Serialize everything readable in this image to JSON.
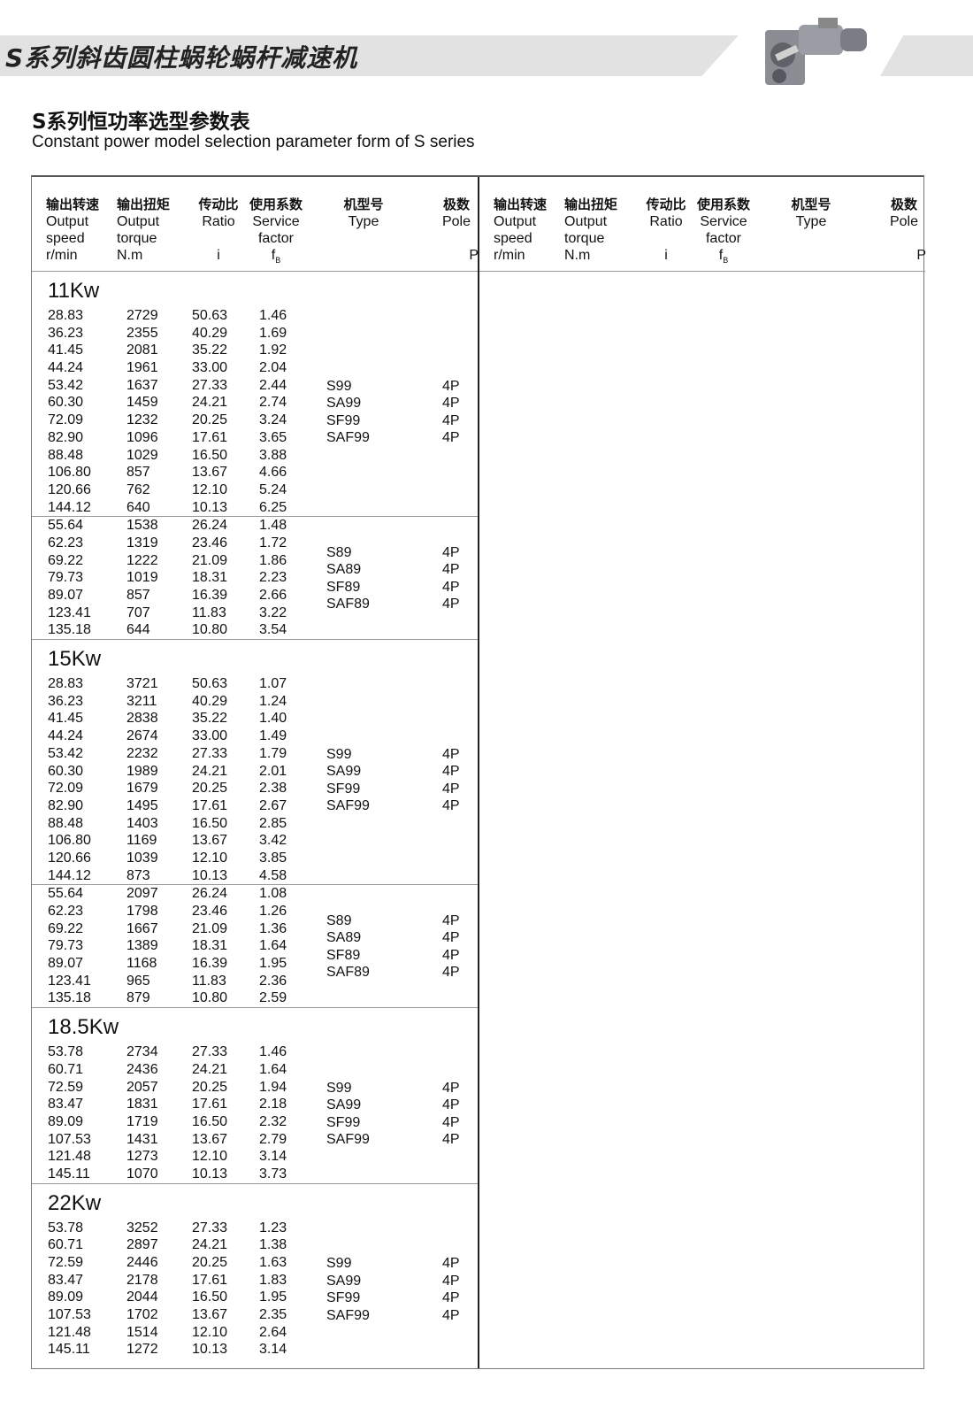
{
  "banner": {
    "title": "S系列斜齿圆柱蜗轮蜗杆减速机",
    "image_icon": "gear-reducer-product-image"
  },
  "subtitle_cn": "S系列恒功率选型参数表",
  "subtitle_en": "Constant power model selection parameter form of  S series",
  "headers": [
    {
      "cn": "输出转速",
      "en": [
        "Output",
        "speed",
        "r/min"
      ]
    },
    {
      "cn": "输出扭矩",
      "en": [
        "Output",
        "torque",
        "N.m"
      ]
    },
    {
      "cn": "传动比",
      "en": [
        "Ratio",
        "",
        "i"
      ]
    },
    {
      "cn": "使用系数",
      "en": [
        "Service",
        "factor",
        "fB"
      ]
    },
    {
      "cn": "机型号",
      "en": [
        "Type",
        "",
        ""
      ]
    },
    {
      "cn": "极数",
      "en": [
        "Pole",
        "",
        "P"
      ]
    }
  ],
  "sections": [
    {
      "title": "11Kw",
      "groups": [
        {
          "rows": [
            [
              "28.83",
              "2729",
              "50.63",
              "1.46"
            ],
            [
              "36.23",
              "2355",
              "40.29",
              "1.69"
            ],
            [
              "41.45",
              "2081",
              "35.22",
              "1.92"
            ],
            [
              "44.24",
              "1961",
              "33.00",
              "2.04"
            ],
            [
              "53.42",
              "1637",
              "27.33",
              "2.44"
            ],
            [
              "60.30",
              "1459",
              "24.21",
              "2.74"
            ],
            [
              "72.09",
              "1232",
              "20.25",
              "3.24"
            ],
            [
              "82.90",
              "1096",
              "17.61",
              "3.65"
            ],
            [
              "88.48",
              "1029",
              "16.50",
              "3.88"
            ],
            [
              "106.80",
              "857",
              "13.67",
              "4.66"
            ],
            [
              "120.66",
              "762",
              "12.10",
              "5.24"
            ],
            [
              "144.12",
              "640",
              "10.13",
              "6.25"
            ]
          ],
          "types": [
            "S99",
            "SA99",
            "SF99",
            "SAF99"
          ],
          "poles": [
            "4P",
            "4P",
            "4P",
            "4P"
          ],
          "type_row": 4
        },
        {
          "rows": [
            [
              "55.64",
              "1538",
              "26.24",
              "1.48"
            ],
            [
              "62.23",
              "1319",
              "23.46",
              "1.72"
            ],
            [
              "69.22",
              "1222",
              "21.09",
              "1.86"
            ],
            [
              "79.73",
              "1019",
              "18.31",
              "2.23"
            ],
            [
              "89.07",
              "857",
              "16.39",
              "2.66"
            ],
            [
              "123.41",
              "707",
              "11.83",
              "3.22"
            ],
            [
              "135.18",
              "644",
              "10.80",
              "3.54"
            ]
          ],
          "types": [
            "S89",
            "SA89",
            "SF89",
            "SAF89"
          ],
          "poles": [
            "4P",
            "4P",
            "4P",
            "4P"
          ],
          "type_row": 1.5
        }
      ]
    },
    {
      "title": "15Kw",
      "groups": [
        {
          "rows": [
            [
              "28.83",
              "3721",
              "50.63",
              "1.07"
            ],
            [
              "36.23",
              "3211",
              "40.29",
              "1.24"
            ],
            [
              "41.45",
              "2838",
              "35.22",
              "1.40"
            ],
            [
              "44.24",
              "2674",
              "33.00",
              "1.49"
            ],
            [
              "53.42",
              "2232",
              "27.33",
              "1.79"
            ],
            [
              "60.30",
              "1989",
              "24.21",
              "2.01"
            ],
            [
              "72.09",
              "1679",
              "20.25",
              "2.38"
            ],
            [
              "82.90",
              "1495",
              "17.61",
              "2.67"
            ],
            [
              "88.48",
              "1403",
              "16.50",
              "2.85"
            ],
            [
              "106.80",
              "1169",
              "13.67",
              "3.42"
            ],
            [
              "120.66",
              "1039",
              "12.10",
              "3.85"
            ],
            [
              "144.12",
              "873",
              "10.13",
              "4.58"
            ]
          ],
          "types": [
            "S99",
            "SA99",
            "SF99",
            "SAF99"
          ],
          "poles": [
            "4P",
            "4P",
            "4P",
            "4P"
          ],
          "type_row": 4
        },
        {
          "rows": [
            [
              "55.64",
              "2097",
              "26.24",
              "1.08"
            ],
            [
              "62.23",
              "1798",
              "23.46",
              "1.26"
            ],
            [
              "69.22",
              "1667",
              "21.09",
              "1.36"
            ],
            [
              "79.73",
              "1389",
              "18.31",
              "1.64"
            ],
            [
              "89.07",
              "1168",
              "16.39",
              "1.95"
            ],
            [
              "123.41",
              "965",
              "11.83",
              "2.36"
            ],
            [
              "135.18",
              "879",
              "10.80",
              "2.59"
            ]
          ],
          "types": [
            "S89",
            "SA89",
            "SF89",
            "SAF89"
          ],
          "poles": [
            "4P",
            "4P",
            "4P",
            "4P"
          ],
          "type_row": 1.5
        }
      ]
    },
    {
      "title": "18.5Kw",
      "groups": [
        {
          "rows": [
            [
              "53.78",
              "2734",
              "27.33",
              "1.46"
            ],
            [
              "60.71",
              "2436",
              "24.21",
              "1.64"
            ],
            [
              "72.59",
              "2057",
              "20.25",
              "1.94"
            ],
            [
              "83.47",
              "1831",
              "17.61",
              "2.18"
            ],
            [
              "89.09",
              "1719",
              "16.50",
              "2.32"
            ],
            [
              "107.53",
              "1431",
              "13.67",
              "2.79"
            ],
            [
              "121.48",
              "1273",
              "12.10",
              "3.14"
            ],
            [
              "145.11",
              "1070",
              "10.13",
              "3.73"
            ]
          ],
          "types": [
            "S99",
            "SA99",
            "SF99",
            "SAF99"
          ],
          "poles": [
            "4P",
            "4P",
            "4P",
            "4P"
          ],
          "type_row": 2
        }
      ]
    },
    {
      "title": "22Kw",
      "groups": [
        {
          "rows": [
            [
              "53.78",
              "3252",
              "27.33",
              "1.23"
            ],
            [
              "60.71",
              "2897",
              "24.21",
              "1.38"
            ],
            [
              "72.59",
              "2446",
              "20.25",
              "1.63"
            ],
            [
              "83.47",
              "2178",
              "17.61",
              "1.83"
            ],
            [
              "89.09",
              "2044",
              "16.50",
              "1.95"
            ],
            [
              "107.53",
              "1702",
              "13.67",
              "2.35"
            ],
            [
              "121.48",
              "1514",
              "12.10",
              "2.64"
            ],
            [
              "145.11",
              "1272",
              "10.13",
              "3.14"
            ]
          ],
          "types": [
            "S99",
            "SA99",
            "SF99",
            "SAF99"
          ],
          "poles": [
            "4P",
            "4P",
            "4P",
            "4P"
          ],
          "type_row": 2
        }
      ]
    }
  ]
}
